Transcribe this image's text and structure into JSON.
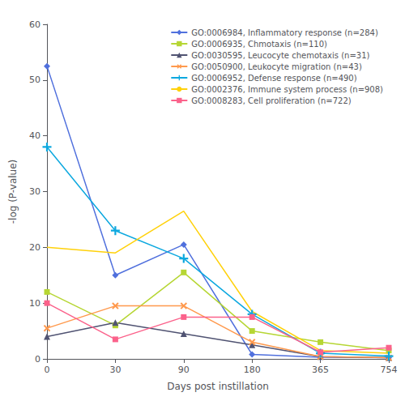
{
  "chart_data": {
    "type": "line",
    "categories": [
      "0",
      "30",
      "90",
      "180",
      "365",
      "754"
    ],
    "xlabel": "Days post instillation",
    "ylabel": "-log (P-value)",
    "ylim": [
      0,
      60
    ],
    "yticks": [
      0,
      10,
      20,
      30,
      40,
      50,
      60
    ],
    "grid": false,
    "legend": "upper right",
    "series": [
      {
        "name": "GO:0006984, Inflammatory response (n=284)",
        "marker": "diamond",
        "values": [
          52.5,
          15.0,
          20.5,
          0.8,
          0.3,
          0.2
        ]
      },
      {
        "name": "GO:0006935, Chmotaxis (n=110)",
        "marker": "square",
        "values": [
          12.0,
          6.0,
          15.5,
          5.0,
          3.0,
          1.5
        ]
      },
      {
        "name": "GO:0030595, Leucocyte chemotaxis (n=31)",
        "marker": "triangle",
        "values": [
          4.0,
          6.5,
          4.5,
          2.5,
          0.4,
          0.2
        ]
      },
      {
        "name": "GO:0050900, Leukocyte migration (n=43)",
        "marker": "x",
        "values": [
          5.5,
          9.5,
          9.5,
          3.0,
          0.4,
          0.2
        ]
      },
      {
        "name": "GO:0006952, Defense response (n=490)",
        "marker": "plus",
        "values": [
          38.0,
          23.0,
          18.0,
          8.0,
          1.0,
          0.5
        ]
      },
      {
        "name": "GO:0002376, Immune system process (n=908)",
        "marker": "none",
        "values": [
          20.0,
          19.0,
          26.5,
          8.5,
          1.5,
          1.0
        ]
      },
      {
        "name": "GO:0008283, Cell proliferation (n=722)",
        "marker": "square",
        "values": [
          10.0,
          3.5,
          7.5,
          7.5,
          1.2,
          2.0
        ]
      }
    ]
  }
}
